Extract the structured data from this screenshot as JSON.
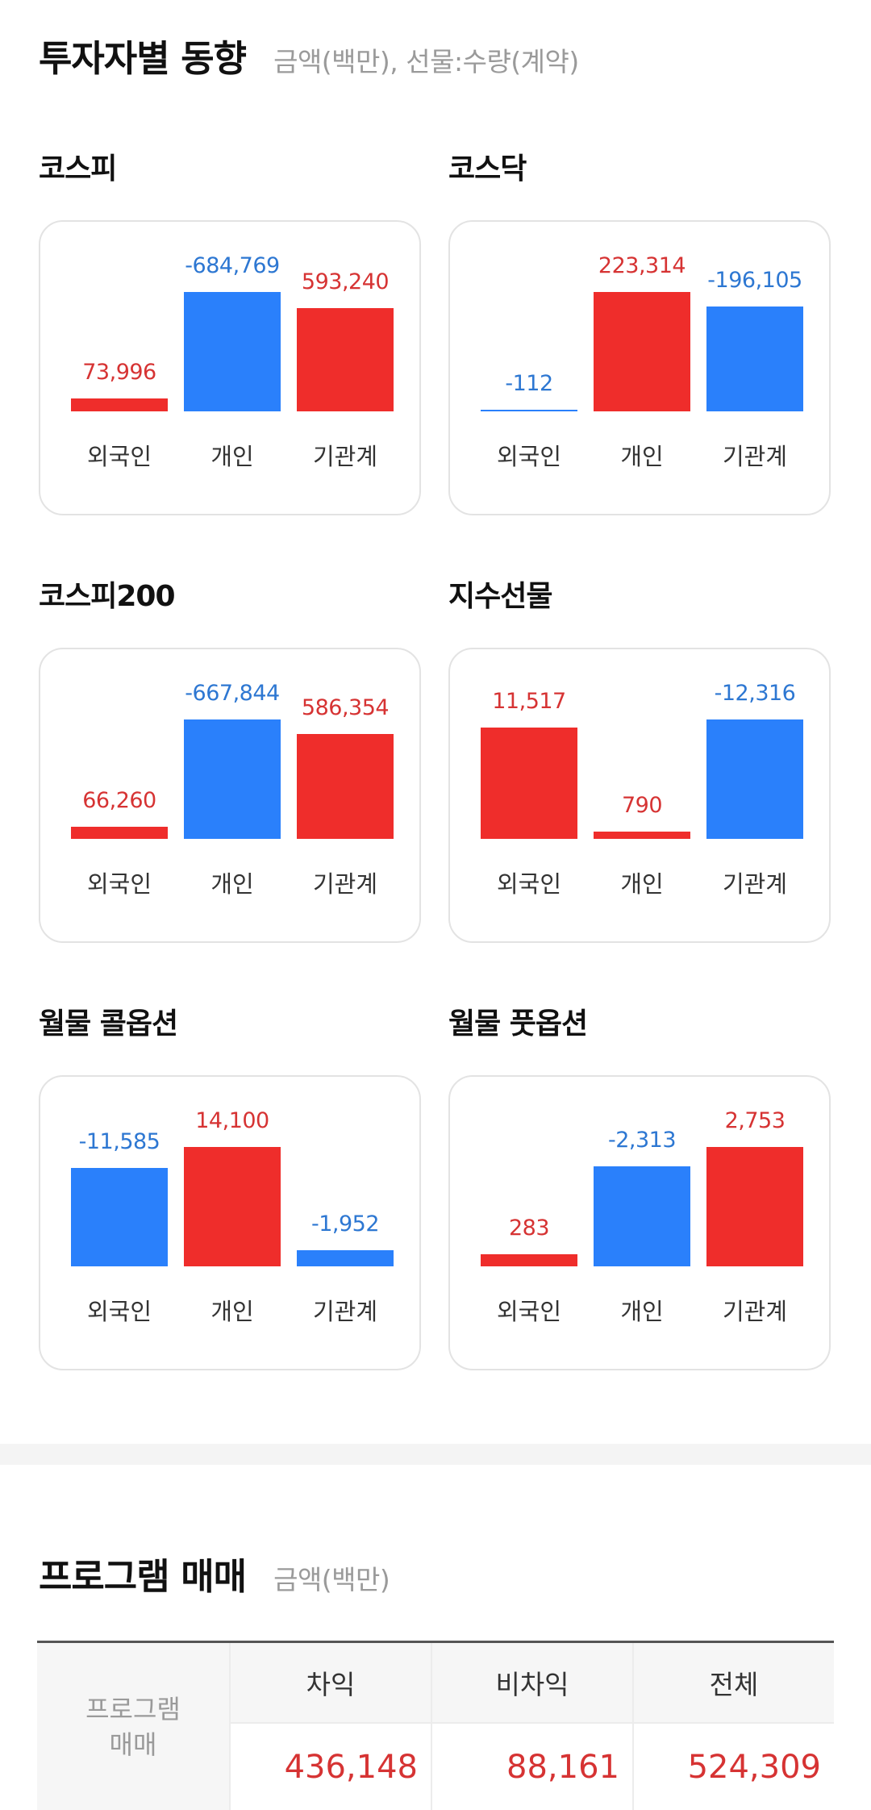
{
  "investor_section": {
    "title": "투자자별 동향",
    "subtitle": "금액(백만), 선물:수량(계약)"
  },
  "panels": [
    {
      "title": "코스피",
      "bars": [
        {
          "label": "외국인",
          "value": "73,996",
          "number": 73996,
          "sign": "pos"
        },
        {
          "label": "개인",
          "value": "-684,769",
          "number": -684769,
          "sign": "neg"
        },
        {
          "label": "기관계",
          "value": "593,240",
          "number": 593240,
          "sign": "pos"
        }
      ]
    },
    {
      "title": "코스닥",
      "bars": [
        {
          "label": "외국인",
          "value": "-112",
          "number": -112,
          "sign": "neg"
        },
        {
          "label": "개인",
          "value": "223,314",
          "number": 223314,
          "sign": "pos"
        },
        {
          "label": "기관계",
          "value": "-196,105",
          "number": -196105,
          "sign": "neg"
        }
      ]
    },
    {
      "title": "코스피200",
      "bars": [
        {
          "label": "외국인",
          "value": "66,260",
          "number": 66260,
          "sign": "pos"
        },
        {
          "label": "개인",
          "value": "-667,844",
          "number": -667844,
          "sign": "neg"
        },
        {
          "label": "기관계",
          "value": "586,354",
          "number": 586354,
          "sign": "pos"
        }
      ]
    },
    {
      "title": "지수선물",
      "bars": [
        {
          "label": "외국인",
          "value": "11,517",
          "number": 11517,
          "sign": "pos"
        },
        {
          "label": "개인",
          "value": "790",
          "number": 790,
          "sign": "pos"
        },
        {
          "label": "기관계",
          "value": "-12,316",
          "number": -12316,
          "sign": "neg"
        }
      ]
    },
    {
      "title": "월물 콜옵션",
      "bars": [
        {
          "label": "외국인",
          "value": "-11,585",
          "number": -11585,
          "sign": "neg"
        },
        {
          "label": "개인",
          "value": "14,100",
          "number": 14100,
          "sign": "pos"
        },
        {
          "label": "기관계",
          "value": "-1,952",
          "number": -1952,
          "sign": "neg"
        }
      ]
    },
    {
      "title": "월물 풋옵션",
      "bars": [
        {
          "label": "외국인",
          "value": "283",
          "number": 283,
          "sign": "pos"
        },
        {
          "label": "개인",
          "value": "-2,313",
          "number": -2313,
          "sign": "neg"
        },
        {
          "label": "기관계",
          "value": "2,753",
          "number": 2753,
          "sign": "pos"
        }
      ]
    }
  ],
  "program_section": {
    "title": "프로그램 매매",
    "subtitle": "금액(백만)",
    "row_header_line1": "프로그램",
    "row_header_line2": "매매",
    "columns": [
      {
        "header": "차익",
        "value": "436,148"
      },
      {
        "header": "비차익",
        "value": "88,161"
      },
      {
        "header": "전체",
        "value": "524,309"
      }
    ]
  },
  "colors": {
    "positive_bar": "#ef2d2b",
    "negative_bar": "#2a80fb",
    "positive_text": "#d63333",
    "negative_text": "#2d77d2"
  }
}
